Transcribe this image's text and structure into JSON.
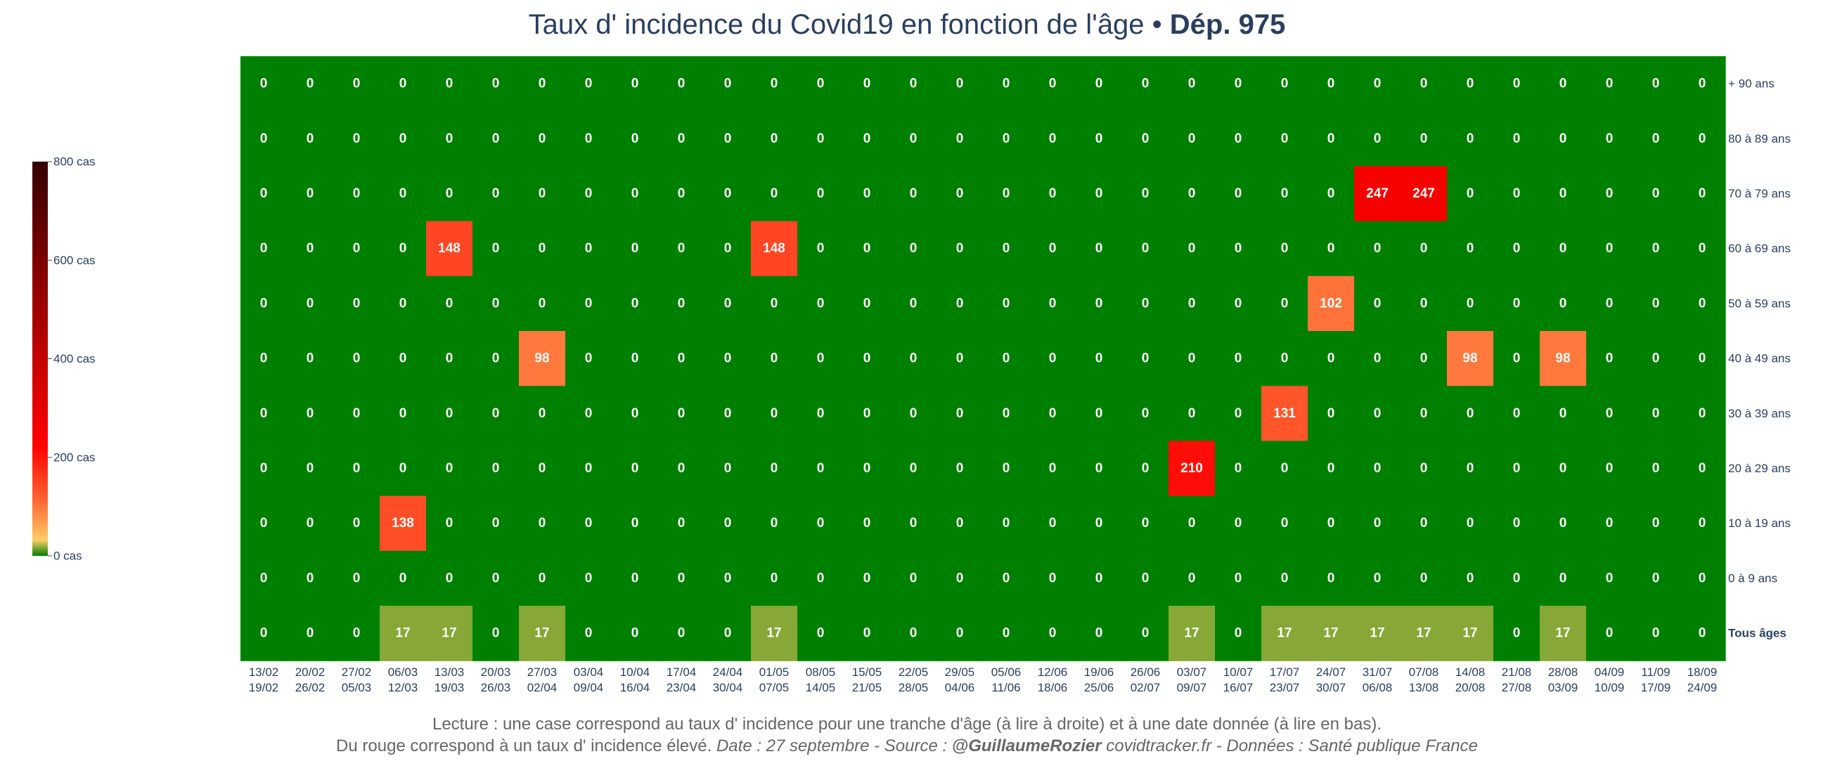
{
  "title": {
    "main": "Taux d' incidence du Covid19 en fonction de l'âge",
    "separator": " • ",
    "bold": "Dép. 975"
  },
  "footer": {
    "line1": "Lecture : une case correspond au taux d' incidence pour une tranche d'âge (à lire à droite) et à une date donnée (à lire en bas).",
    "line2_plain": "Du rouge correspond à un taux d' incidence élevé.  ",
    "line2_it1": "Date : 27 septembre - Source : ",
    "line2_bold": "@GuillaumeRozier",
    "line2_it2": " covidtracker.fr - Données : Santé publique France"
  },
  "colorbar": {
    "ticks": [
      "0 cas",
      "200 cas",
      "400 cas",
      "600 cas",
      "800 cas"
    ],
    "tick_values": [
      0,
      200,
      400,
      600,
      800
    ],
    "range": [
      0,
      800
    ],
    "colorscale": [
      "#008000",
      "#ffcc66",
      "#ff6633",
      "#ff0000",
      "#990000",
      "#330000"
    ]
  },
  "chart_data": {
    "type": "heatmap",
    "x_start": [
      "13/02",
      "20/02",
      "27/02",
      "06/03",
      "13/03",
      "20/03",
      "27/03",
      "03/04",
      "10/04",
      "17/04",
      "24/04",
      "01/05",
      "08/05",
      "15/05",
      "22/05",
      "29/05",
      "05/06",
      "12/06",
      "19/06",
      "26/06",
      "03/07",
      "10/07",
      "17/07",
      "24/07",
      "31/07",
      "07/08",
      "14/08",
      "21/08",
      "28/08",
      "04/09",
      "11/09",
      "18/09"
    ],
    "x_end": [
      "19/02",
      "26/02",
      "05/03",
      "12/03",
      "19/03",
      "26/03",
      "02/04",
      "09/04",
      "16/04",
      "23/04",
      "30/04",
      "07/05",
      "14/05",
      "21/05",
      "28/05",
      "04/06",
      "11/06",
      "18/06",
      "25/06",
      "02/07",
      "09/07",
      "16/07",
      "23/07",
      "30/07",
      "06/08",
      "13/08",
      "20/08",
      "27/08",
      "03/09",
      "10/09",
      "17/09",
      "24/09"
    ],
    "y": [
      "+ 90 ans",
      "80 à 89 ans",
      "70 à 79 ans",
      "60 à 69 ans",
      "50 à 59 ans",
      "40 à 49 ans",
      "30 à 39 ans",
      "20 à 29 ans",
      "10 à 19 ans",
      "0 à 9 ans",
      "Tous âges"
    ],
    "z": [
      [
        0,
        0,
        0,
        0,
        0,
        0,
        0,
        0,
        0,
        0,
        0,
        0,
        0,
        0,
        0,
        0,
        0,
        0,
        0,
        0,
        0,
        0,
        0,
        0,
        0,
        0,
        0,
        0,
        0,
        0,
        0,
        0
      ],
      [
        0,
        0,
        0,
        0,
        0,
        0,
        0,
        0,
        0,
        0,
        0,
        0,
        0,
        0,
        0,
        0,
        0,
        0,
        0,
        0,
        0,
        0,
        0,
        0,
        0,
        0,
        0,
        0,
        0,
        0,
        0,
        0
      ],
      [
        0,
        0,
        0,
        0,
        0,
        0,
        0,
        0,
        0,
        0,
        0,
        0,
        0,
        0,
        0,
        0,
        0,
        0,
        0,
        0,
        0,
        0,
        0,
        0,
        247,
        247,
        0,
        0,
        0,
        0,
        0,
        0
      ],
      [
        0,
        0,
        0,
        0,
        148,
        0,
        0,
        0,
        0,
        0,
        0,
        148,
        0,
        0,
        0,
        0,
        0,
        0,
        0,
        0,
        0,
        0,
        0,
        0,
        0,
        0,
        0,
        0,
        0,
        0,
        0,
        0
      ],
      [
        0,
        0,
        0,
        0,
        0,
        0,
        0,
        0,
        0,
        0,
        0,
        0,
        0,
        0,
        0,
        0,
        0,
        0,
        0,
        0,
        0,
        0,
        0,
        102,
        0,
        0,
        0,
        0,
        0,
        0,
        0,
        0
      ],
      [
        0,
        0,
        0,
        0,
        0,
        0,
        98,
        0,
        0,
        0,
        0,
        0,
        0,
        0,
        0,
        0,
        0,
        0,
        0,
        0,
        0,
        0,
        0,
        0,
        0,
        0,
        98,
        0,
        98,
        0,
        0,
        0
      ],
      [
        0,
        0,
        0,
        0,
        0,
        0,
        0,
        0,
        0,
        0,
        0,
        0,
        0,
        0,
        0,
        0,
        0,
        0,
        0,
        0,
        0,
        0,
        131,
        0,
        0,
        0,
        0,
        0,
        0,
        0,
        0,
        0
      ],
      [
        0,
        0,
        0,
        0,
        0,
        0,
        0,
        0,
        0,
        0,
        0,
        0,
        0,
        0,
        0,
        0,
        0,
        0,
        0,
        0,
        210,
        0,
        0,
        0,
        0,
        0,
        0,
        0,
        0,
        0,
        0,
        0
      ],
      [
        0,
        0,
        0,
        138,
        0,
        0,
        0,
        0,
        0,
        0,
        0,
        0,
        0,
        0,
        0,
        0,
        0,
        0,
        0,
        0,
        0,
        0,
        0,
        0,
        0,
        0,
        0,
        0,
        0,
        0,
        0,
        0
      ],
      [
        0,
        0,
        0,
        0,
        0,
        0,
        0,
        0,
        0,
        0,
        0,
        0,
        0,
        0,
        0,
        0,
        0,
        0,
        0,
        0,
        0,
        0,
        0,
        0,
        0,
        0,
        0,
        0,
        0,
        0,
        0,
        0
      ],
      [
        0,
        0,
        0,
        17,
        17,
        0,
        17,
        0,
        0,
        0,
        0,
        17,
        0,
        0,
        0,
        0,
        0,
        0,
        0,
        0,
        17,
        0,
        17,
        17,
        17,
        17,
        17,
        0,
        17,
        0,
        0,
        0
      ]
    ],
    "bold_row": "Tous âges",
    "zlim": [
      0,
      800
    ]
  }
}
